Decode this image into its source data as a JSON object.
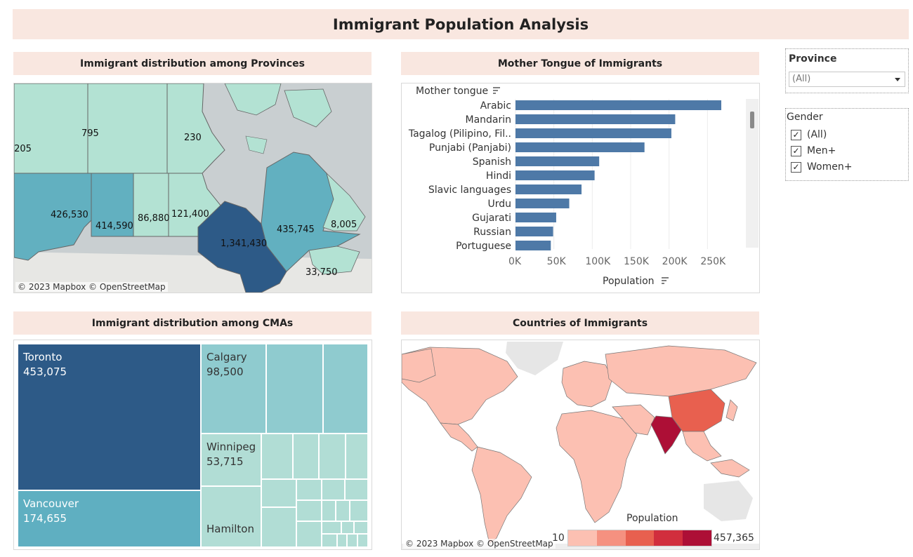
{
  "dashboard": {
    "title": "Immigrant Population Analysis"
  },
  "provinces_map": {
    "title": "Immigrant distribution among Provinces",
    "copyright": "© 2023 Mapbox © OpenStreetMap",
    "labels": {
      "yukon": ",205",
      "nwt": "795",
      "nunavut": "230",
      "bc": "426,530",
      "alberta": "414,590",
      "saskatchewan": "86,880",
      "manitoba": "121,400",
      "ontario": "1,341,430",
      "quebec": "435,745",
      "nl": "8,005",
      "maritimes": "33,750"
    }
  },
  "tongue_chart": {
    "title": "Mother Tongue of Immigrants",
    "dimension_label": "Mother tongue",
    "sort_icon": "sort-descending-icon",
    "bar_color": "#4e79a7"
  },
  "chart_data": {
    "type": "bar",
    "orientation": "horizontal",
    "categories": [
      "Arabic",
      "Mandarin",
      "Tagalog (Pilipino, Fil..",
      "Punjabi (Panjabi)",
      "Spanish",
      "Hindi",
      "Slavic languages",
      "Urdu",
      "Gujarati",
      "Russian",
      "Portuguese"
    ],
    "values": [
      268000,
      208000,
      203000,
      168000,
      109000,
      103000,
      86000,
      70000,
      53000,
      49000,
      46000
    ],
    "xlabel": "Population",
    "ylabel": "Mother tongue",
    "xlim": [
      0,
      300000
    ],
    "ticks": [
      {
        "value": 0,
        "label": "0K"
      },
      {
        "value": 50000,
        "label": "50K"
      },
      {
        "value": 100000,
        "label": "100K"
      },
      {
        "value": 150000,
        "label": "150K"
      },
      {
        "value": 200000,
        "label": "200K"
      },
      {
        "value": 250000,
        "label": "250K"
      }
    ],
    "grid": true
  },
  "cma_treemap": {
    "title": "Immigrant distribution among CMAs",
    "cells": [
      {
        "name": "Toronto",
        "value": "453,075"
      },
      {
        "name": "Vancouver",
        "value": "174,655"
      },
      {
        "name": "Calgary",
        "value": "98,500"
      },
      {
        "name": "Winnipeg",
        "value": "53,715"
      },
      {
        "name": "Hamilton",
        "value": ""
      }
    ]
  },
  "countries_map": {
    "title": "Countries of Immigrants",
    "copyright": "© 2023 Mapbox © OpenStreetMap",
    "legend": {
      "title": "Population",
      "min": "10",
      "max": "457,365",
      "colors": [
        "#fcc0b2",
        "#f59180",
        "#e8604f",
        "#d12e3d",
        "#ad0f36"
      ]
    }
  },
  "filters": {
    "province": {
      "title": "Province",
      "selected": "(All)"
    },
    "gender": {
      "title": "Gender",
      "options": [
        {
          "label": "(All)",
          "checked": true
        },
        {
          "label": "Men+",
          "checked": true
        },
        {
          "label": "Women+",
          "checked": true
        }
      ]
    }
  }
}
